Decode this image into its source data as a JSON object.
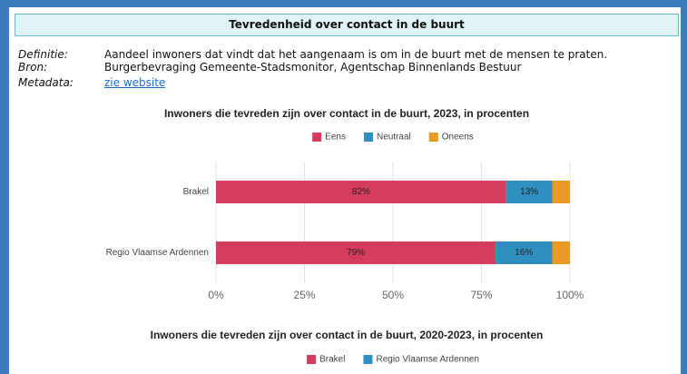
{
  "header": {
    "title": "Tevredenheid over contact in de buurt"
  },
  "definitions": [
    {
      "label": "Definitie:",
      "text": "Aandeel inwoners dat vindt dat het aangenaam is om in de buurt met de mensen te praten."
    },
    {
      "label": "Bron:",
      "text": "Burgerbevraging Gemeente-Stadsmonitor, Agentschap Binnenlands Bestuur"
    },
    {
      "label": "Metadata:",
      "text": "zie website"
    }
  ],
  "chart_data": [
    {
      "type": "bar",
      "orientation": "horizontal",
      "stacked": true,
      "title": "Inwoners die tevreden zijn over contact in de buurt, 2023, in procenten",
      "categories": [
        "Brakel",
        "Regio Vlaamse Ardennen"
      ],
      "series": [
        {
          "name": "Eens",
          "color": "#d63c5e",
          "values": [
            82,
            79
          ],
          "value_labels": [
            "82%",
            "79%"
          ]
        },
        {
          "name": "Neutraal",
          "color": "#2f8fc1",
          "values": [
            13,
            16
          ],
          "value_labels": [
            "13%",
            "16%"
          ]
        },
        {
          "name": "Oneens",
          "color": "#e89a24",
          "values": [
            5,
            5
          ]
        }
      ],
      "xlim": [
        0,
        100
      ],
      "xticks": [
        {
          "value": 0,
          "label": "0%"
        },
        {
          "value": 25,
          "label": "25%"
        },
        {
          "value": 50,
          "label": "50%"
        },
        {
          "value": 75,
          "label": "75%"
        },
        {
          "value": 100,
          "label": "100%"
        }
      ],
      "grid": true,
      "legend": "top"
    },
    {
      "type": "line",
      "title": "Inwoners die tevreden zijn over contact in de buurt, 2020-2023, in procenten",
      "series": [
        {
          "name": "Brakel",
          "color": "#d63c5e"
        },
        {
          "name": "Regio Vlaamse Ardennen",
          "color": "#2f8fc1"
        }
      ],
      "legend": "top"
    }
  ]
}
